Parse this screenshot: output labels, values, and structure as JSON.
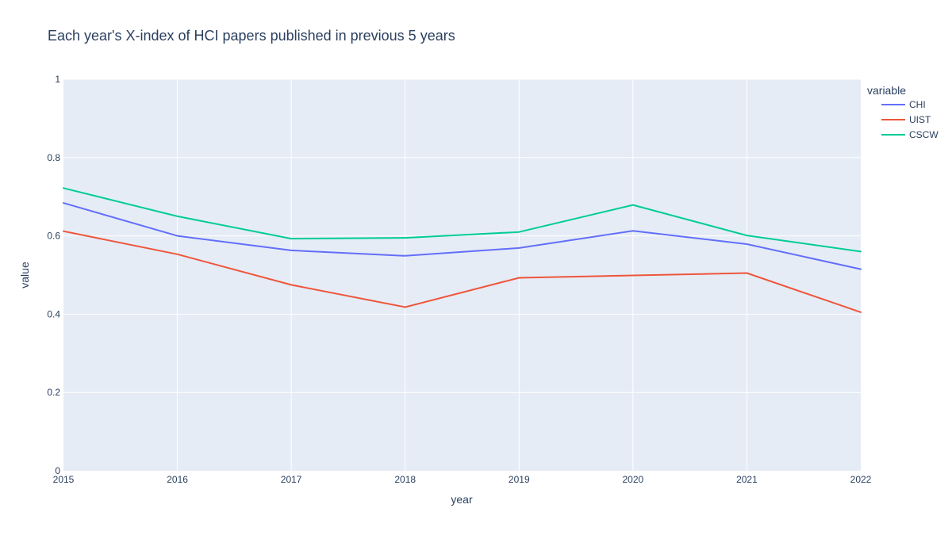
{
  "chart_data": {
    "type": "line",
    "title": "Each year's X-index of HCI papers published in previous 5 years",
    "xlabel": "year",
    "ylabel": "value",
    "x": [
      2015,
      2016,
      2017,
      2018,
      2019,
      2020,
      2021,
      2022
    ],
    "xlim": [
      2015,
      2022
    ],
    "ylim": [
      0,
      1
    ],
    "yticks": [
      0,
      0.2,
      0.4,
      0.6,
      0.8,
      1
    ],
    "ytick_labels": [
      "0",
      "0.2",
      "0.4",
      "0.6",
      "0.8",
      "1"
    ],
    "grid": true,
    "plot_background": "#e5ecf6",
    "legend": {
      "title": "variable",
      "placement": "top-right-outside"
    },
    "series": [
      {
        "name": "CHI",
        "color": "#636efa",
        "values": [
          0.684,
          0.6,
          0.563,
          0.549,
          0.569,
          0.613,
          0.579,
          0.515
        ]
      },
      {
        "name": "UIST",
        "color": "#ef553b",
        "values": [
          0.612,
          0.553,
          0.475,
          0.418,
          0.493,
          0.499,
          0.505,
          0.405
        ]
      },
      {
        "name": "CSCW",
        "color": "#00cc96",
        "values": [
          0.722,
          0.65,
          0.593,
          0.595,
          0.61,
          0.679,
          0.601,
          0.56
        ]
      }
    ]
  }
}
